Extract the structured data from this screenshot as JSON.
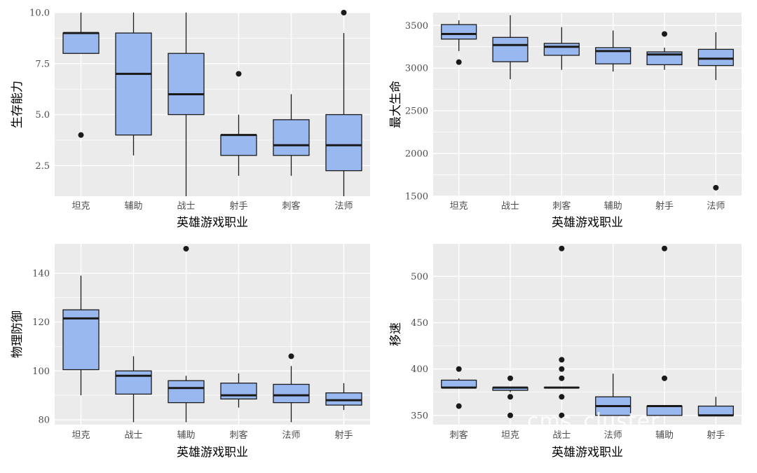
{
  "watermark": "cms_cluster",
  "style": {
    "panel_bg": "#EBEBEB",
    "grid": "#FFFFFF",
    "box_fill": "#9AB8F0",
    "box_stroke": "#1A1A1A",
    "outlier": "#1A1A1A",
    "tick_text": "#4D4D4D"
  },
  "chart_data": [
    {
      "type": "boxplot",
      "xlabel": "英雄游戏职业",
      "ylabel": "生存能力",
      "ylim": [
        1,
        10
      ],
      "yticks": [
        10.0,
        7.5,
        5.0,
        2.5
      ],
      "ytick_labels": [
        "10.0",
        "7.5",
        "5.0",
        "2.5"
      ],
      "grid": true,
      "categories": [
        "坦克",
        "辅助",
        "战士",
        "射手",
        "刺客",
        "法师"
      ],
      "boxes": [
        {
          "category": "坦克",
          "min": 8,
          "q1": 8,
          "median": 9,
          "q3": 9,
          "max": 10,
          "outliers": [
            4
          ]
        },
        {
          "category": "辅助",
          "min": 3,
          "q1": 4,
          "median": 7,
          "q3": 9,
          "max": 10,
          "outliers": []
        },
        {
          "category": "战士",
          "min": 1,
          "q1": 5,
          "median": 6,
          "q3": 8,
          "max": 10,
          "outliers": []
        },
        {
          "category": "射手",
          "min": 2,
          "q1": 3,
          "median": 4,
          "q3": 4,
          "max": 5,
          "outliers": [
            7
          ]
        },
        {
          "category": "刺客",
          "min": 2,
          "q1": 3,
          "median": 3.5,
          "q3": 4.75,
          "max": 6,
          "outliers": []
        },
        {
          "category": "法师",
          "min": 1,
          "q1": 2.25,
          "median": 3.5,
          "q3": 5,
          "max": 9,
          "outliers": [
            10
          ]
        }
      ]
    },
    {
      "type": "boxplot",
      "xlabel": "英雄游戏职业",
      "ylabel": "最大生命",
      "ylim": [
        1500,
        3650
      ],
      "yticks": [
        3500,
        3000,
        2500,
        2000,
        1500
      ],
      "ytick_labels": [
        "3500",
        "3000",
        "2500",
        "2000",
        "1500"
      ],
      "grid": true,
      "categories": [
        "坦克",
        "战士",
        "刺客",
        "辅助",
        "射手",
        "法师"
      ],
      "boxes": [
        {
          "category": "坦克",
          "min": 3200,
          "q1": 3340,
          "median": 3400,
          "q3": 3510,
          "max": 3560,
          "outliers": [
            3070
          ]
        },
        {
          "category": "战士",
          "min": 2870,
          "q1": 3075,
          "median": 3270,
          "q3": 3360,
          "max": 3620,
          "outliers": []
        },
        {
          "category": "刺客",
          "min": 2980,
          "q1": 3150,
          "median": 3250,
          "q3": 3290,
          "max": 3480,
          "outliers": []
        },
        {
          "category": "辅助",
          "min": 2960,
          "q1": 3050,
          "median": 3200,
          "q3": 3240,
          "max": 3440,
          "outliers": []
        },
        {
          "category": "射手",
          "min": 2980,
          "q1": 3040,
          "median": 3160,
          "q3": 3190,
          "max": 3240,
          "outliers": [
            3400
          ]
        },
        {
          "category": "法师",
          "min": 2860,
          "q1": 3030,
          "median": 3110,
          "q3": 3220,
          "max": 3420,
          "outliers": [
            1600
          ]
        }
      ]
    },
    {
      "type": "boxplot",
      "xlabel": "英雄游戏职业",
      "ylabel": "物理防御",
      "ylim": [
        78,
        152
      ],
      "yticks": [
        140,
        120,
        100,
        80
      ],
      "ytick_labels": [
        "140",
        "120",
        "100",
        "80"
      ],
      "grid": true,
      "categories": [
        "坦克",
        "战士",
        "辅助",
        "刺客",
        "法师",
        "射手"
      ],
      "boxes": [
        {
          "category": "坦克",
          "min": 90,
          "q1": 100.5,
          "median": 121.5,
          "q3": 125,
          "max": 139,
          "outliers": []
        },
        {
          "category": "战士",
          "min": 79,
          "q1": 90.5,
          "median": 98,
          "q3": 100,
          "max": 106,
          "outliers": []
        },
        {
          "category": "辅助",
          "min": 79,
          "q1": 87,
          "median": 93,
          "q3": 96,
          "max": 98,
          "outliers": [
            150
          ]
        },
        {
          "category": "刺客",
          "min": 85,
          "q1": 88.5,
          "median": 90,
          "q3": 95,
          "max": 99,
          "outliers": []
        },
        {
          "category": "法师",
          "min": 79,
          "q1": 87,
          "median": 90,
          "q3": 94.5,
          "max": 102,
          "outliers": [
            106
          ]
        },
        {
          "category": "射手",
          "min": 84,
          "q1": 86,
          "median": 88,
          "q3": 91,
          "max": 95,
          "outliers": []
        }
      ]
    },
    {
      "type": "boxplot",
      "xlabel": "英雄游戏职业",
      "ylabel": "移速",
      "ylim": [
        340,
        535
      ],
      "yticks": [
        500,
        450,
        400,
        350
      ],
      "ytick_labels": [
        "500",
        "450",
        "400",
        "350"
      ],
      "grid": true,
      "categories": [
        "刺客",
        "坦克",
        "战士",
        "法师",
        "辅助",
        "射手"
      ],
      "boxes": [
        {
          "category": "刺客",
          "min": 380,
          "q1": 380,
          "median": 380,
          "q3": 388,
          "max": 390,
          "outliers": [
            400,
            360
          ]
        },
        {
          "category": "坦克",
          "min": 375,
          "q1": 377,
          "median": 380,
          "q3": 380,
          "max": 380,
          "outliers": [
            390,
            370,
            350
          ]
        },
        {
          "category": "战士",
          "min": 380,
          "q1": 380,
          "median": 380,
          "q3": 380,
          "max": 380,
          "outliers": [
            530,
            410,
            400,
            390,
            370,
            350
          ]
        },
        {
          "category": "法师",
          "min": 350,
          "q1": 350,
          "median": 360,
          "q3": 370,
          "max": 395,
          "outliers": []
        },
        {
          "category": "辅助",
          "min": 350,
          "q1": 350,
          "median": 360,
          "q3": 360,
          "max": 360,
          "outliers": [
            530,
            390
          ]
        },
        {
          "category": "射手",
          "min": 350,
          "q1": 350,
          "median": 350,
          "q3": 360,
          "max": 370,
          "outliers": []
        }
      ]
    }
  ]
}
